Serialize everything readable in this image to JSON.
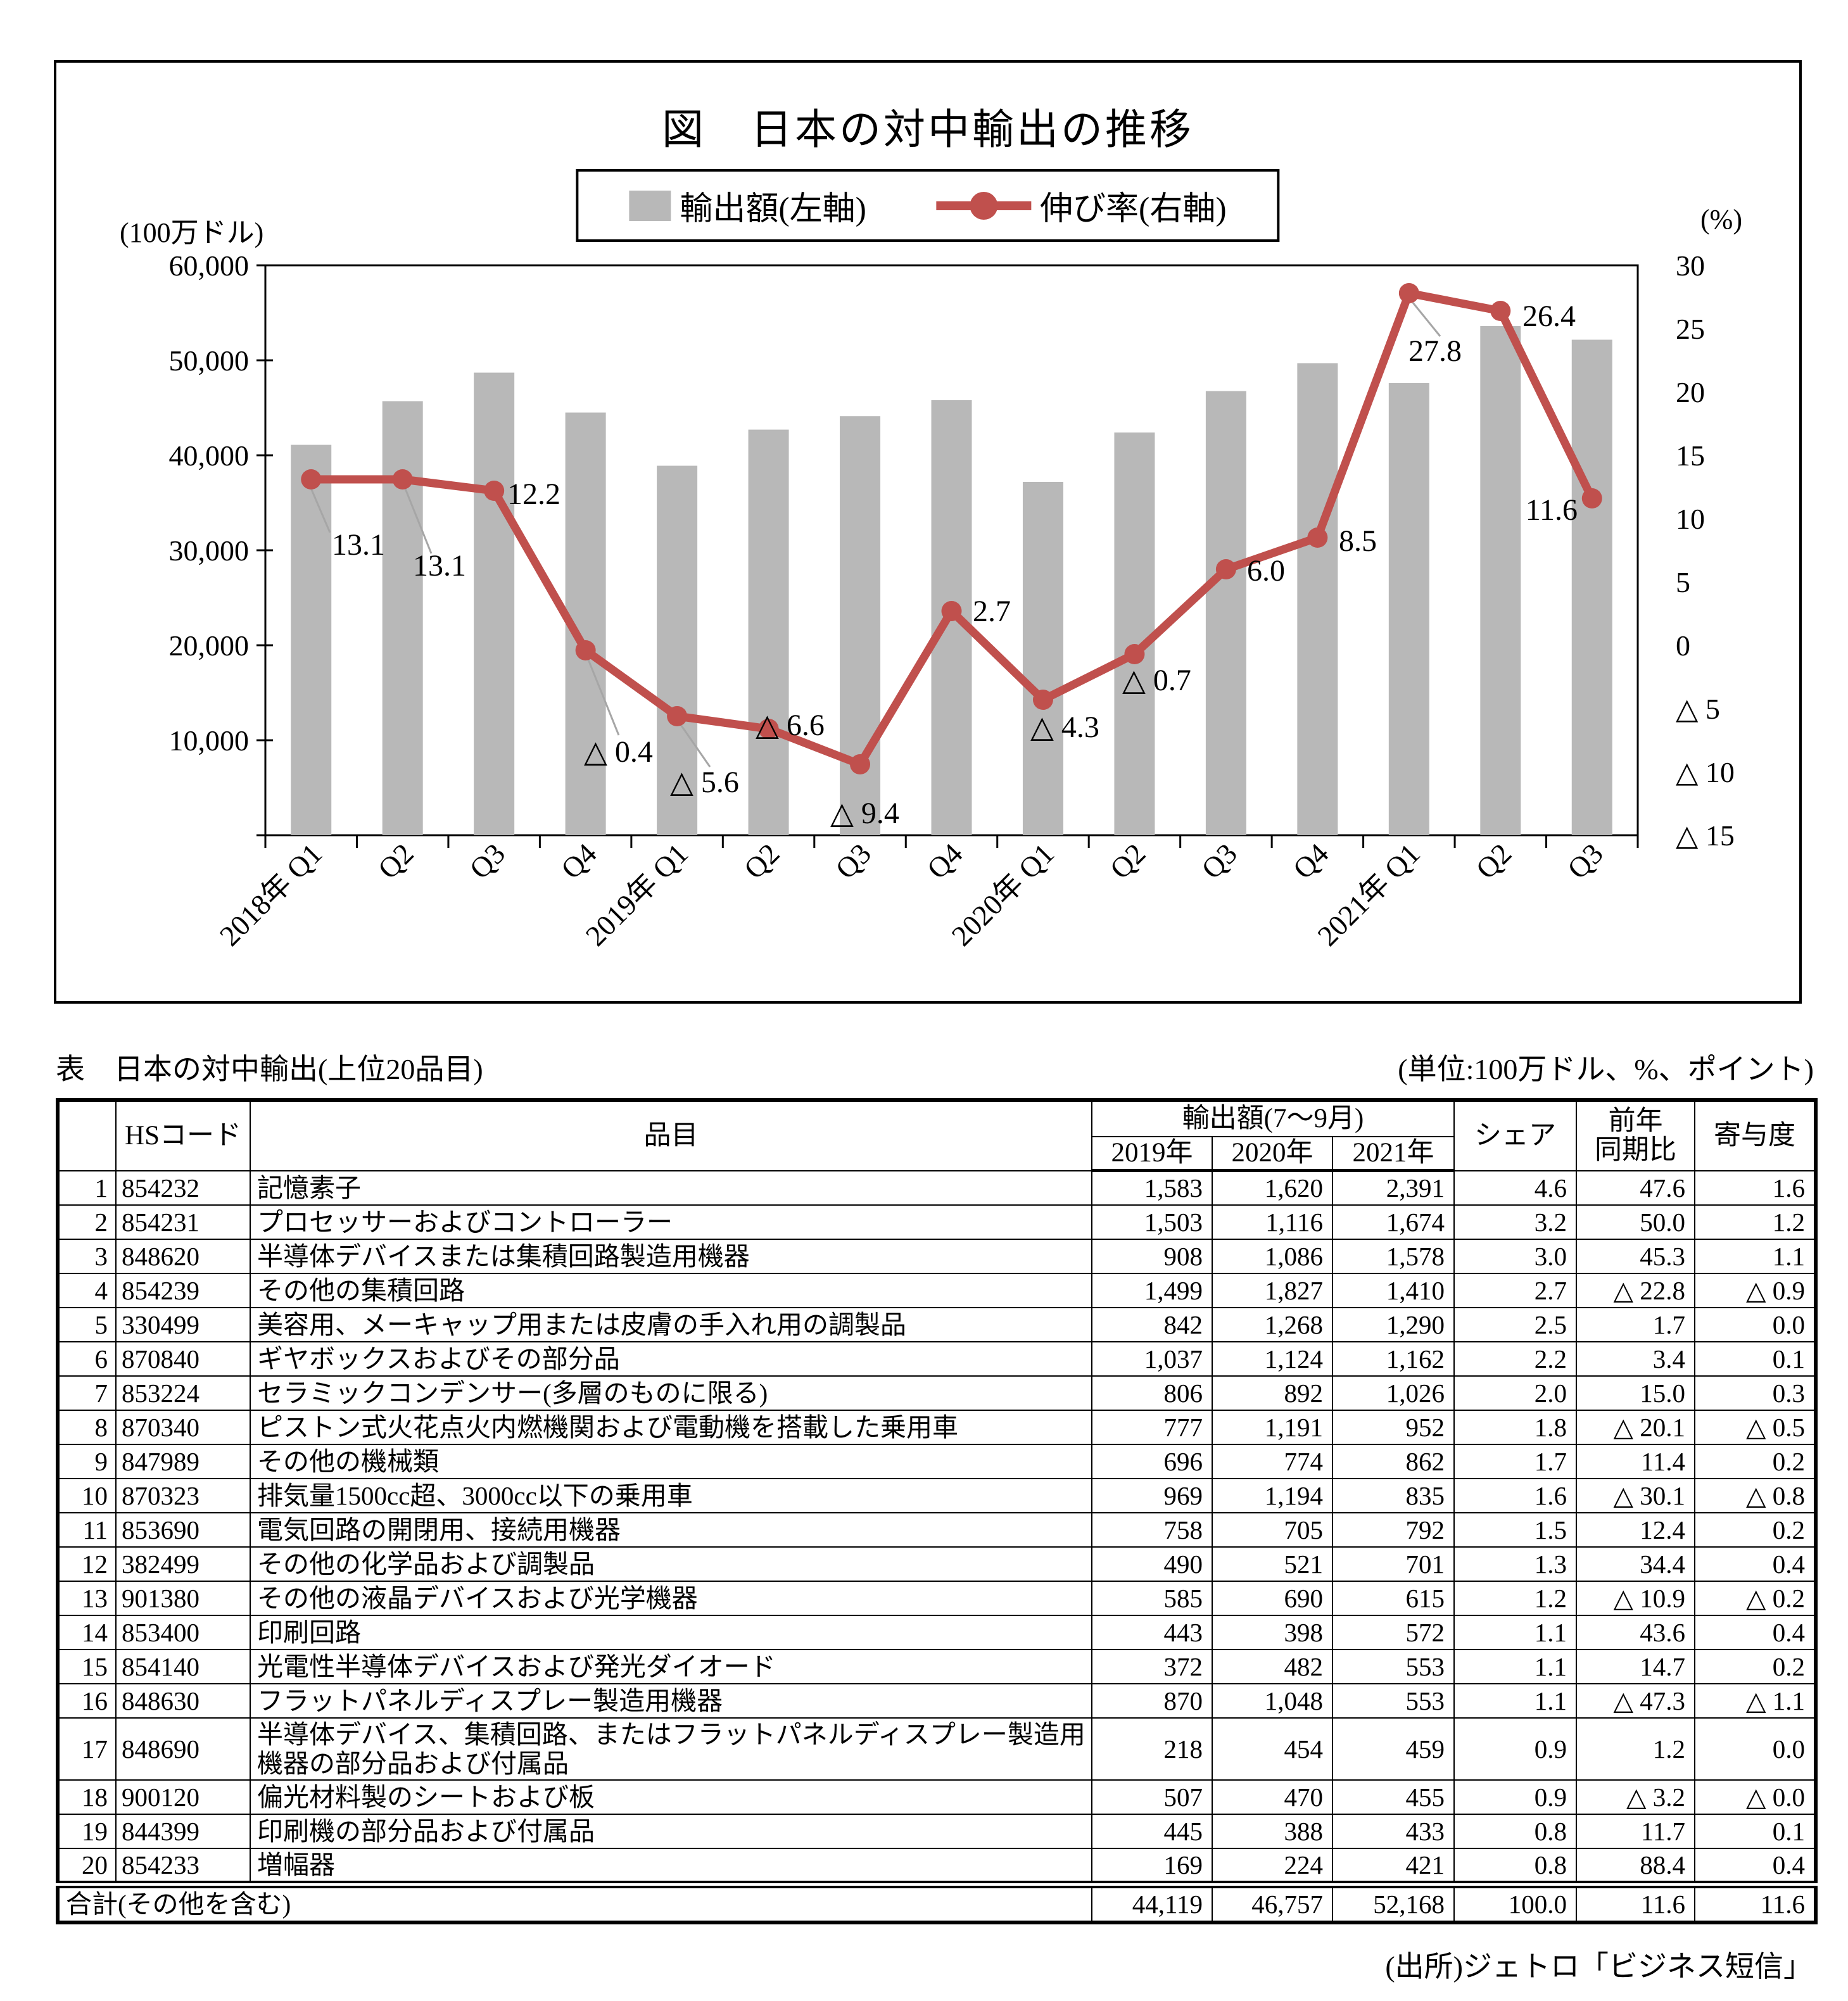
{
  "chart": {
    "title": "図　日本の対中輸出の推移",
    "legend": {
      "bar": "輸出額(左軸)",
      "line": "伸び率(右軸)"
    },
    "left_axis_unit": "(100万ドル)",
    "right_axis_unit": "(%)"
  },
  "chart_data": {
    "type": "bar+line",
    "title": "図　日本の対中輸出の推移",
    "categories": [
      "2018年 Q1",
      "Q2",
      "Q3",
      "Q4",
      "2019年 Q1",
      "Q2",
      "Q3",
      "Q4",
      "2020年 Q1",
      "Q2",
      "Q3",
      "Q4",
      "2021年 Q1",
      "Q2",
      "Q3"
    ],
    "series": [
      {
        "name": "輸出額(左軸)",
        "type": "bar",
        "axis": "left",
        "color": "#b8b8b8",
        "values": [
          41100,
          45700,
          48700,
          44500,
          38900,
          42700,
          44119,
          45800,
          37200,
          42400,
          46757,
          49700,
          47600,
          53600,
          52168
        ]
      },
      {
        "name": "伸び率(右軸)",
        "type": "line",
        "axis": "right",
        "color": "#c0504d",
        "values": [
          13.1,
          13.1,
          12.2,
          -0.4,
          -5.6,
          -6.6,
          -9.4,
          2.7,
          -4.3,
          -0.7,
          6.0,
          8.5,
          27.8,
          26.4,
          11.6
        ],
        "point_labels": [
          "13.1",
          "13.1",
          "12.2",
          "△ 0.4",
          "△ 5.6",
          "△ 6.6",
          "△ 9.4",
          "2.7",
          "△ 4.3",
          "△ 0.7",
          "6.0",
          "8.5",
          "27.8",
          "26.4",
          "11.6"
        ]
      }
    ],
    "left_axis": {
      "label": "(100万ドル)",
      "min": 0,
      "max": 60000,
      "step": 10000,
      "tick_labels": [
        "60,000",
        "50,000",
        "40,000",
        "30,000",
        "20,000",
        "10,000"
      ]
    },
    "right_axis": {
      "label": "(%)",
      "min": -15,
      "max": 30,
      "step": 5,
      "tick_labels": [
        "30",
        "25",
        "20",
        "15",
        "10",
        "5",
        "0",
        "△ 5",
        "△ 10",
        "△ 15"
      ]
    },
    "legend_position": "top",
    "grid": false
  },
  "table": {
    "title": "表　日本の対中輸出(上位20品目)",
    "unit_note": "(単位:100万ドル、%、ポイント)",
    "header": {
      "hs_code": "HSコード",
      "item": "品目",
      "export_group": "輸出額(7〜9月)",
      "years": [
        "2019年",
        "2020年",
        "2021年"
      ],
      "share": "シェア",
      "yoy_line1": "前年",
      "yoy_line2": "同期比",
      "contribution": "寄与度"
    },
    "rows": [
      {
        "rank": "1",
        "hs": "854232",
        "item": "記憶素子",
        "v2019": "1,583",
        "v2020": "1,620",
        "v2021": "2,391",
        "share": "4.6",
        "yoy": "47.6",
        "contrib": "1.6"
      },
      {
        "rank": "2",
        "hs": "854231",
        "item": "プロセッサーおよびコントローラー",
        "v2019": "1,503",
        "v2020": "1,116",
        "v2021": "1,674",
        "share": "3.2",
        "yoy": "50.0",
        "contrib": "1.2"
      },
      {
        "rank": "3",
        "hs": "848620",
        "item": "半導体デバイスまたは集積回路製造用機器",
        "v2019": "908",
        "v2020": "1,086",
        "v2021": "1,578",
        "share": "3.0",
        "yoy": "45.3",
        "contrib": "1.1"
      },
      {
        "rank": "4",
        "hs": "854239",
        "item": "その他の集積回路",
        "v2019": "1,499",
        "v2020": "1,827",
        "v2021": "1,410",
        "share": "2.7",
        "yoy": "△ 22.8",
        "contrib": "△ 0.9"
      },
      {
        "rank": "5",
        "hs": "330499",
        "item": "美容用、メーキャップ用または皮膚の手入れ用の調製品",
        "v2019": "842",
        "v2020": "1,268",
        "v2021": "1,290",
        "share": "2.5",
        "yoy": "1.7",
        "contrib": "0.0"
      },
      {
        "rank": "6",
        "hs": "870840",
        "item": "ギヤボックスおよびその部分品",
        "v2019": "1,037",
        "v2020": "1,124",
        "v2021": "1,162",
        "share": "2.2",
        "yoy": "3.4",
        "contrib": "0.1"
      },
      {
        "rank": "7",
        "hs": "853224",
        "item": "セラミックコンデンサー(多層のものに限る)",
        "v2019": "806",
        "v2020": "892",
        "v2021": "1,026",
        "share": "2.0",
        "yoy": "15.0",
        "contrib": "0.3"
      },
      {
        "rank": "8",
        "hs": "870340",
        "item": "ピストン式火花点火内燃機関および電動機を搭載した乗用車",
        "v2019": "777",
        "v2020": "1,191",
        "v2021": "952",
        "share": "1.8",
        "yoy": "△ 20.1",
        "contrib": "△ 0.5"
      },
      {
        "rank": "9",
        "hs": "847989",
        "item": "その他の機械類",
        "v2019": "696",
        "v2020": "774",
        "v2021": "862",
        "share": "1.7",
        "yoy": "11.4",
        "contrib": "0.2"
      },
      {
        "rank": "10",
        "hs": "870323",
        "item": "排気量1500cc超、3000cc以下の乗用車",
        "v2019": "969",
        "v2020": "1,194",
        "v2021": "835",
        "share": "1.6",
        "yoy": "△ 30.1",
        "contrib": "△ 0.8"
      },
      {
        "rank": "11",
        "hs": "853690",
        "item": "電気回路の開閉用、接続用機器",
        "v2019": "758",
        "v2020": "705",
        "v2021": "792",
        "share": "1.5",
        "yoy": "12.4",
        "contrib": "0.2"
      },
      {
        "rank": "12",
        "hs": "382499",
        "item": "その他の化学品および調製品",
        "v2019": "490",
        "v2020": "521",
        "v2021": "701",
        "share": "1.3",
        "yoy": "34.4",
        "contrib": "0.4"
      },
      {
        "rank": "13",
        "hs": "901380",
        "item": "その他の液晶デバイスおよび光学機器",
        "v2019": "585",
        "v2020": "690",
        "v2021": "615",
        "share": "1.2",
        "yoy": "△ 10.9",
        "contrib": "△ 0.2"
      },
      {
        "rank": "14",
        "hs": "853400",
        "item": "印刷回路",
        "v2019": "443",
        "v2020": "398",
        "v2021": "572",
        "share": "1.1",
        "yoy": "43.6",
        "contrib": "0.4"
      },
      {
        "rank": "15",
        "hs": "854140",
        "item": "光電性半導体デバイスおよび発光ダイオード",
        "v2019": "372",
        "v2020": "482",
        "v2021": "553",
        "share": "1.1",
        "yoy": "14.7",
        "contrib": "0.2"
      },
      {
        "rank": "16",
        "hs": "848630",
        "item": "フラットパネルディスプレー製造用機器",
        "v2019": "870",
        "v2020": "1,048",
        "v2021": "553",
        "share": "1.1",
        "yoy": "△ 47.3",
        "contrib": "△ 1.1"
      },
      {
        "rank": "17",
        "hs": "848690",
        "item": "半導体デバイス、集積回路、またはフラットパネルディスプレー製造用機器の部分品および付属品",
        "v2019": "218",
        "v2020": "454",
        "v2021": "459",
        "share": "0.9",
        "yoy": "1.2",
        "contrib": "0.0"
      },
      {
        "rank": "18",
        "hs": "900120",
        "item": "偏光材料製のシートおよび板",
        "v2019": "507",
        "v2020": "470",
        "v2021": "455",
        "share": "0.9",
        "yoy": "△ 3.2",
        "contrib": "△ 0.0"
      },
      {
        "rank": "19",
        "hs": "844399",
        "item": "印刷機の部分品および付属品",
        "v2019": "445",
        "v2020": "388",
        "v2021": "433",
        "share": "0.8",
        "yoy": "11.7",
        "contrib": "0.1"
      },
      {
        "rank": "20",
        "hs": "854233",
        "item": "増幅器",
        "v2019": "169",
        "v2020": "224",
        "v2021": "421",
        "share": "0.8",
        "yoy": "88.4",
        "contrib": "0.4"
      }
    ],
    "total": {
      "label": "合計(その他を含む)",
      "v2019": "44,119",
      "v2020": "46,757",
      "v2021": "52,168",
      "share": "100.0",
      "yoy": "11.6",
      "contrib": "11.6"
    }
  },
  "source": "(出所)ジェトロ「ビジネス短信」"
}
